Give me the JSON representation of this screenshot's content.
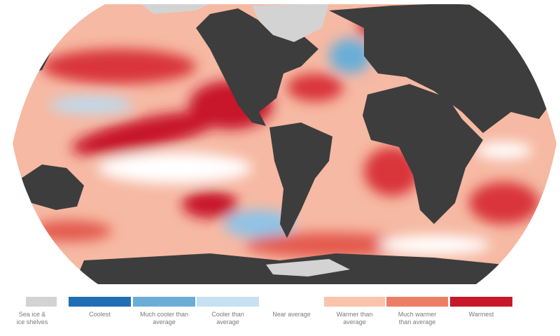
{
  "legend": {
    "items": [
      {
        "label": "Sea ice & ice shelves",
        "color": "#d3d3d3"
      },
      {
        "label": "Coolest",
        "color": "#1f6fb5"
      },
      {
        "label": "Much cooler than average",
        "color": "#6aaed8"
      },
      {
        "label": "Cooler than average",
        "color": "#c6e1f2"
      },
      {
        "label": "Near average",
        "color": "#ffffff"
      },
      {
        "label": "Warmer than average",
        "color": "#f9c3ac"
      },
      {
        "label": "Much warmer than average",
        "color": "#ec7e64"
      },
      {
        "label": "Warmest",
        "color": "#c8182a"
      }
    ]
  }
}
